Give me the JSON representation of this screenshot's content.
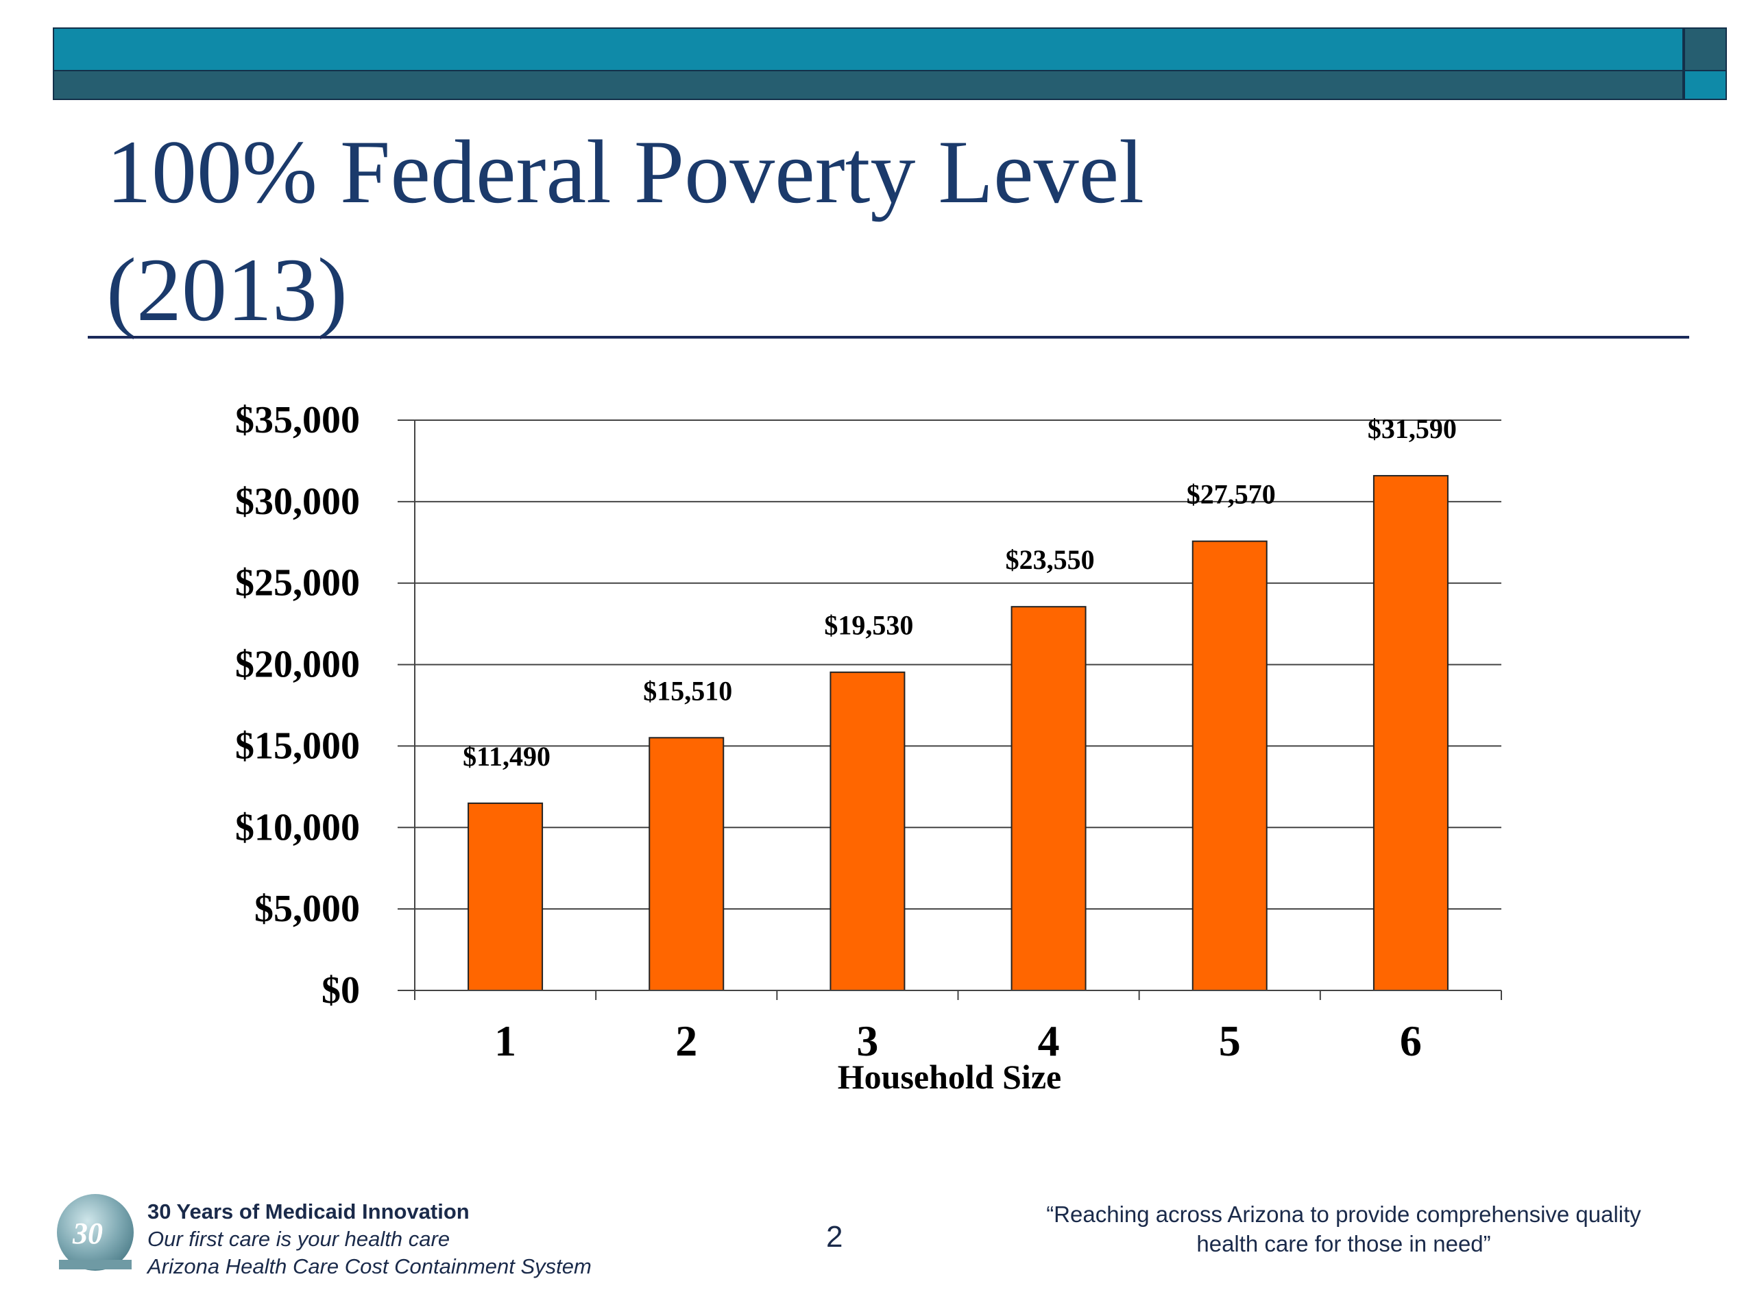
{
  "slide": {
    "title_line1": "100% Federal Poverty Level",
    "title_line2": "(2013)",
    "page_number": "2"
  },
  "footer": {
    "logo_text": "30",
    "line1": "30 Years of Medicaid Innovation",
    "line2": "Our first care is your health care",
    "line3": "Arizona Health Care Cost Containment System",
    "quote_line1": "“Reaching across Arizona to provide comprehensive quality",
    "quote_line2": "health care for those in need”"
  },
  "colors": {
    "bar": "#ff6600",
    "title": "#1b3a6b",
    "header_teal": "#0f8aa8",
    "header_dark": "#265e70"
  },
  "chart_data": {
    "type": "bar",
    "title": "100% Federal Poverty Level (2013)",
    "xlabel": "Household Size",
    "ylabel": "",
    "categories": [
      "1",
      "2",
      "3",
      "4",
      "5",
      "6"
    ],
    "values": [
      11490,
      15510,
      19530,
      23550,
      27570,
      31590
    ],
    "data_labels": [
      "$11,490",
      "$15,510",
      "$19,530",
      "$23,550",
      "$27,570",
      "$31,590"
    ],
    "ylim": [
      0,
      35000
    ],
    "yticks": [
      0,
      5000,
      10000,
      15000,
      20000,
      25000,
      30000,
      35000
    ],
    "ytick_labels": [
      "$0",
      "$5,000",
      "$10,000",
      "$15,000",
      "$20,000",
      "$25,000",
      "$30,000",
      "$35,000"
    ],
    "grid": true,
    "legend": "none"
  }
}
